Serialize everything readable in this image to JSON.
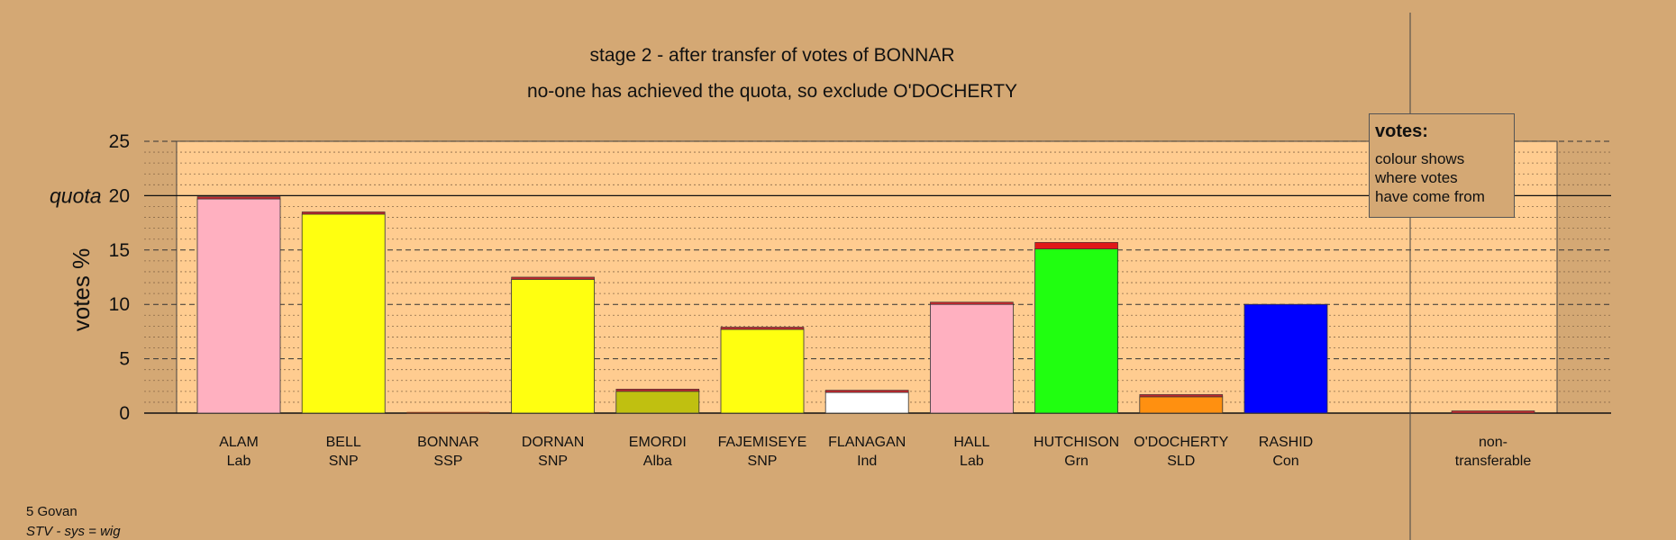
{
  "chart_data": {
    "type": "bar",
    "title": "stage 2 - after transfer of votes of BONNAR",
    "subtitle": "no-one has achieved the quota, so exclude O'DOCHERTY",
    "ylabel": "votes %",
    "ylim": [
      0,
      25
    ],
    "yticks": [
      "0",
      "5",
      "10",
      "15",
      "20",
      "25"
    ],
    "quota_label": "quota",
    "quota": 20,
    "grid": true,
    "candidates": [
      {
        "name": "ALAM",
        "party": "Lab",
        "color": "#ffb0c0",
        "base": 19.7,
        "transfer": 0.2,
        "transfer_color": "#c0282e"
      },
      {
        "name": "BELL",
        "party": "SNP",
        "color": "#ffff10",
        "base": 18.3,
        "transfer": 0.15,
        "transfer_color": "#c0282e"
      },
      {
        "name": "BONNAR",
        "party": "SSP",
        "color": "#e02020",
        "base": 0,
        "transfer": 0,
        "transfer_color": "#c0282e"
      },
      {
        "name": "DORNAN",
        "party": "SNP",
        "color": "#ffff10",
        "base": 12.3,
        "transfer": 0.2,
        "transfer_color": "#c0282e"
      },
      {
        "name": "EMORDI",
        "party": "Alba",
        "color": "#c0c010",
        "base": 2.0,
        "transfer": 0.15,
        "transfer_color": "#c0282e"
      },
      {
        "name": "FAJEMISEYE",
        "party": "SNP",
        "color": "#ffff10",
        "base": 7.7,
        "transfer": 0.1,
        "transfer_color": "#c0282e"
      },
      {
        "name": "FLANAGAN",
        "party": "Ind",
        "color": "#ffffff",
        "base": 1.9,
        "transfer": 0.1,
        "transfer_color": "#c0282e"
      },
      {
        "name": "HALL",
        "party": "Lab",
        "color": "#ffb0c0",
        "base": 10.0,
        "transfer": 0.1,
        "transfer_color": "#c0282e"
      },
      {
        "name": "HUTCHISON",
        "party": "Grn",
        "color": "#20ff10",
        "base": 15.1,
        "transfer": 0.6,
        "transfer_color": "#e01818"
      },
      {
        "name": "O'DOCHERTY",
        "party": "SLD",
        "color": "#ff9010",
        "base": 1.5,
        "transfer": 0.05,
        "transfer_color": "#c0282e"
      },
      {
        "name": "RASHID",
        "party": "Con",
        "color": "#0000ff",
        "base": 10.0,
        "transfer": 0.0,
        "transfer_color": "#c0282e"
      }
    ],
    "nontransferable": {
      "label_line1": "non-",
      "label_line2": "transferable",
      "value": 0.1,
      "color": "#c0282e"
    }
  },
  "legend": {
    "title": "votes:",
    "line1": "colour shows",
    "line2": "where votes",
    "line3": "have come from"
  },
  "footnote": {
    "line1": "5 Govan",
    "line2": "STV - sys = wig"
  },
  "colors": {
    "background": "#d4a874",
    "plot_background": "#ffcc90"
  }
}
